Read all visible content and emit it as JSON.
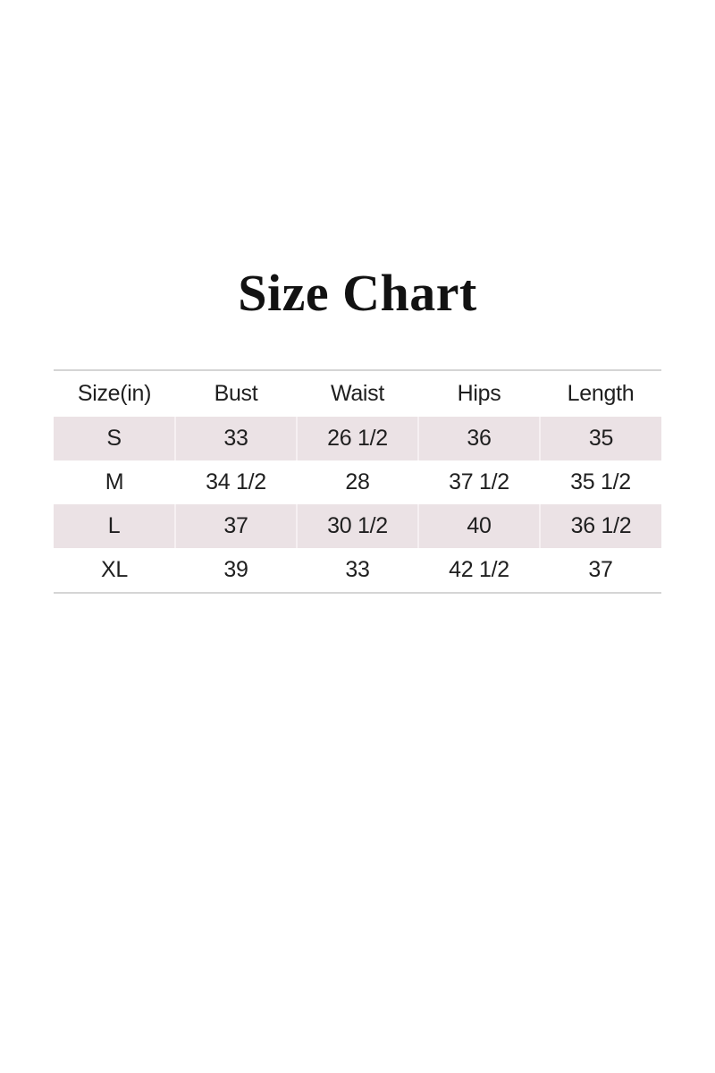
{
  "page": {
    "title": "Size Chart"
  },
  "chart_data": {
    "type": "table",
    "title": "Size Chart",
    "columns": [
      "Size(in)",
      "Bust",
      "Waist",
      "Hips",
      "Length"
    ],
    "rows": [
      [
        "S",
        "33",
        "26 1/2",
        "36",
        "35"
      ],
      [
        "M",
        "34 1/2",
        "28",
        "37 1/2",
        "35 1/2"
      ],
      [
        "L",
        "37",
        "30 1/2",
        "40",
        "36 1/2"
      ],
      [
        "XL",
        "39",
        "33",
        "42 1/2",
        "37"
      ]
    ]
  },
  "colors": {
    "shaded_row": "#ebe2e5",
    "cell_separator": "#f6f0f2",
    "rule": "#d5d5d5",
    "text": "#1f1f1f"
  }
}
